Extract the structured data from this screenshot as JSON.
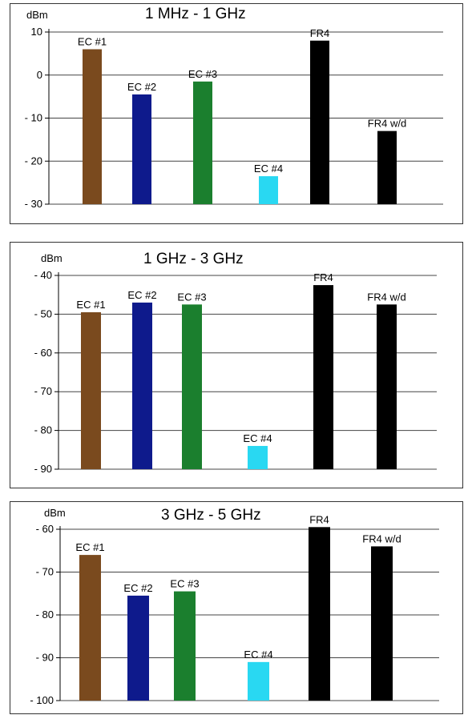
{
  "chart_data": [
    {
      "type": "bar",
      "title": "1 MHz - 1 GHz",
      "ylabel": "dBm",
      "ylim": [
        -30,
        10
      ],
      "yticks": [
        10,
        0,
        -10,
        -20,
        -30
      ],
      "ytick_labels": [
        "10",
        "0",
        "- 10",
        "- 20",
        "- 30"
      ],
      "grid": true,
      "categories": [
        "EC #1",
        "EC #2",
        "EC #3",
        "EC #4",
        "FR4",
        "FR4 w/d"
      ],
      "values": [
        6,
        -4.5,
        -1.5,
        -23.5,
        8,
        -13
      ],
      "colors": [
        "#7a4a1e",
        "#0e1a8c",
        "#1b7f2e",
        "#29d8f2",
        "#000000",
        "#000000"
      ]
    },
    {
      "type": "bar",
      "title": "1 GHz - 3 GHz",
      "ylabel": "dBm",
      "ylim": [
        -90,
        -40
      ],
      "yticks": [
        -40,
        -50,
        -60,
        -70,
        -80,
        -90
      ],
      "ytick_labels": [
        "- 40",
        "- 50",
        "- 60",
        "- 70",
        "- 80",
        "- 90"
      ],
      "grid": true,
      "categories": [
        "EC #1",
        "EC #2",
        "EC #3",
        "EC #4",
        "FR4",
        "FR4 w/d"
      ],
      "values": [
        -49.5,
        -47,
        -47.5,
        -84,
        -42.5,
        -47.5
      ],
      "colors": [
        "#7a4a1e",
        "#0e1a8c",
        "#1b7f2e",
        "#29d8f2",
        "#000000",
        "#000000"
      ]
    },
    {
      "type": "bar",
      "title": "3 GHz - 5 GHz",
      "ylabel": "dBm",
      "ylim": [
        -100,
        -60
      ],
      "yticks": [
        -60,
        -70,
        -80,
        -90,
        -100
      ],
      "ytick_labels": [
        "- 60",
        "- 70",
        "- 80",
        "- 90",
        "- 100"
      ],
      "grid": true,
      "categories": [
        "EC #1",
        "EC #2",
        "EC #3",
        "EC #4",
        "FR4",
        "FR4 w/d"
      ],
      "values": [
        -66,
        -75.5,
        -74.5,
        -91,
        -59.5,
        -64
      ],
      "colors": [
        "#7a4a1e",
        "#0e1a8c",
        "#1b7f2e",
        "#29d8f2",
        "#000000",
        "#000000"
      ]
    }
  ]
}
